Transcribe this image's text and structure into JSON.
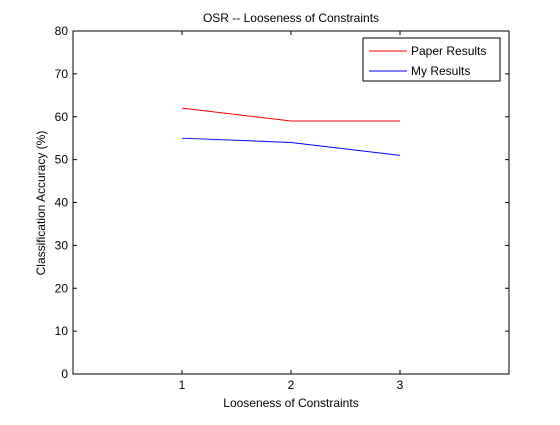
{
  "chart_data": {
    "type": "line",
    "title": "OSR -- Looseness of Constraints",
    "xlabel": "Looseness of Constraints",
    "ylabel": "Classification Accuracy (%)",
    "xlim": [
      0,
      4
    ],
    "ylim": [
      0,
      80
    ],
    "xticks": [
      1,
      2,
      3
    ],
    "yticks": [
      0,
      10,
      20,
      30,
      40,
      50,
      60,
      70,
      80
    ],
    "x": [
      1,
      2,
      3
    ],
    "series": [
      {
        "name": "Paper Results",
        "values": [
          62,
          59,
          59
        ],
        "color": "#ff0000"
      },
      {
        "name": "My Results",
        "values": [
          55,
          54,
          51
        ],
        "color": "#0000ff"
      }
    ],
    "grid": false,
    "legend_position": "top-right",
    "axes_color": "#000000",
    "background": "#ffffff"
  }
}
